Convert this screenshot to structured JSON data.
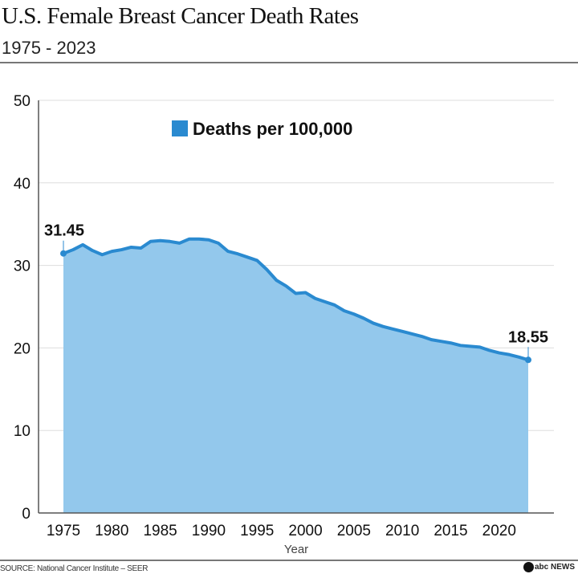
{
  "header": {
    "title": "U.S. Female Breast Cancer Death Rates",
    "subtitle": "1975 - 2023"
  },
  "footer": {
    "source": "SOURCE: National Cancer Institute – SEER",
    "logo": "abc NEWS"
  },
  "chart_data": {
    "type": "area",
    "title": "U.S. Female Breast Cancer Death Rates",
    "subtitle": "1975 - 2023",
    "xlabel": "Year",
    "ylabel": "",
    "ylim": [
      0,
      50
    ],
    "yticks": [
      0,
      10,
      20,
      30,
      40,
      50
    ],
    "xticks": [
      1975,
      1980,
      1985,
      1990,
      1995,
      2000,
      2005,
      2010,
      2015,
      2020
    ],
    "grid": true,
    "legend": "top-center",
    "colors": {
      "line": "#2a8ad0",
      "fill": "#93c8ec",
      "legend": "#2a8ad0"
    },
    "series": [
      {
        "name": "Deaths per 100,000",
        "x": [
          1975,
          1976,
          1977,
          1978,
          1979,
          1980,
          1981,
          1982,
          1983,
          1984,
          1985,
          1986,
          1987,
          1988,
          1989,
          1990,
          1991,
          1992,
          1993,
          1994,
          1995,
          1996,
          1997,
          1998,
          1999,
          2000,
          2001,
          2002,
          2003,
          2004,
          2005,
          2006,
          2007,
          2008,
          2009,
          2010,
          2011,
          2012,
          2013,
          2014,
          2015,
          2016,
          2017,
          2018,
          2019,
          2020,
          2021,
          2022,
          2023
        ],
        "values": [
          31.45,
          31.9,
          32.5,
          31.8,
          31.3,
          31.7,
          31.9,
          32.2,
          32.1,
          32.9,
          33.0,
          32.9,
          32.7,
          33.2,
          33.2,
          33.1,
          32.7,
          31.7,
          31.4,
          31.0,
          30.6,
          29.5,
          28.2,
          27.5,
          26.6,
          26.7,
          26.0,
          25.6,
          25.2,
          24.5,
          24.1,
          23.6,
          23.0,
          22.6,
          22.3,
          22.0,
          21.7,
          21.4,
          21.0,
          20.8,
          20.6,
          20.3,
          20.2,
          20.1,
          19.7,
          19.4,
          19.2,
          18.9,
          18.55
        ]
      }
    ],
    "annotations": [
      {
        "x": 1975,
        "label": "31.45"
      },
      {
        "x": 2023,
        "label": "18.55"
      }
    ]
  }
}
